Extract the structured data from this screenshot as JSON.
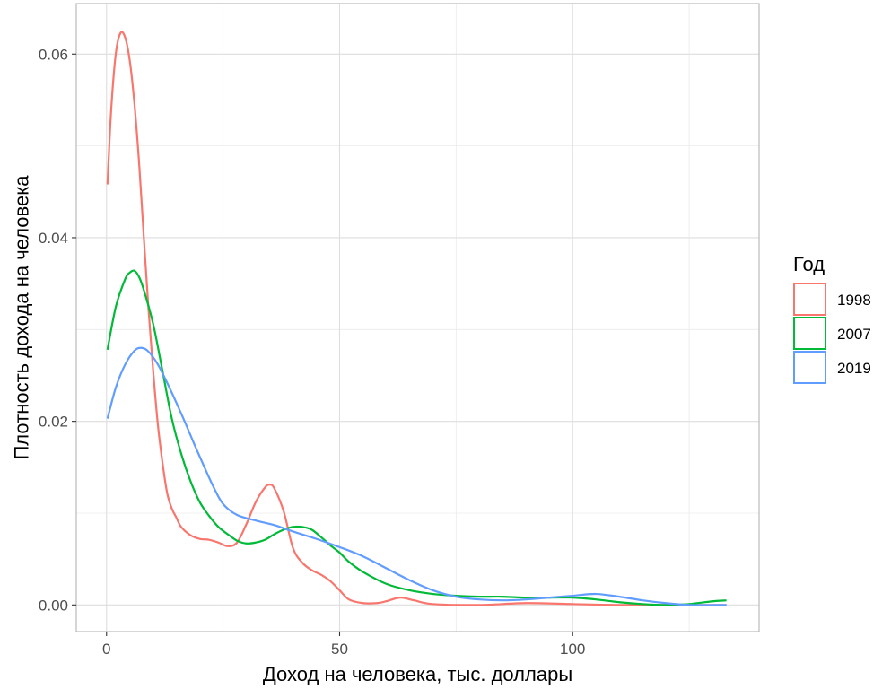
{
  "chart_data": {
    "type": "line",
    "title": "",
    "xlabel": "Доход на человека, тыс. доллары",
    "ylabel": "Плотность дохода на человека",
    "xlim": [
      -6.5,
      140
    ],
    "ylim": [
      -0.0029,
      0.0655
    ],
    "x_ticks": [
      0,
      50,
      100
    ],
    "x_tick_labels": [
      "0",
      "50",
      "100"
    ],
    "y_ticks": [
      0.0,
      0.02,
      0.04,
      0.06
    ],
    "y_tick_labels": [
      "0.00",
      "0.02",
      "0.04",
      "0.06"
    ],
    "x_minor": [
      25,
      75,
      125
    ],
    "y_minor": [
      0.01,
      0.03,
      0.05
    ],
    "grid": true,
    "legend": {
      "title": "Год",
      "position": "right"
    },
    "series": [
      {
        "name": "1998",
        "color": "#F8766D",
        "points": [
          [
            0.2,
            0.0458
          ],
          [
            1,
            0.054
          ],
          [
            2,
            0.0601
          ],
          [
            3,
            0.0623
          ],
          [
            4,
            0.0618
          ],
          [
            5,
            0.0592
          ],
          [
            6,
            0.0545
          ],
          [
            7,
            0.048
          ],
          [
            8,
            0.04
          ],
          [
            9,
            0.0322
          ],
          [
            10,
            0.0255
          ],
          [
            11,
            0.0197
          ],
          [
            12,
            0.0155
          ],
          [
            13,
            0.0122
          ],
          [
            14,
            0.0105
          ],
          [
            15,
            0.0095
          ],
          [
            16,
            0.0085
          ],
          [
            18,
            0.0076
          ],
          [
            20,
            0.0072
          ],
          [
            22,
            0.0071
          ],
          [
            24,
            0.0068
          ],
          [
            26,
            0.0064
          ],
          [
            28,
            0.0068
          ],
          [
            30,
            0.0088
          ],
          [
            32,
            0.0112
          ],
          [
            34,
            0.0128
          ],
          [
            35,
            0.0131
          ],
          [
            36,
            0.0127
          ],
          [
            38,
            0.0102
          ],
          [
            40,
            0.0062
          ],
          [
            42,
            0.0046
          ],
          [
            44,
            0.0038
          ],
          [
            46,
            0.0033
          ],
          [
            48,
            0.0026
          ],
          [
            50,
            0.0016
          ],
          [
            52,
            0.0006
          ],
          [
            55,
            0.0002
          ],
          [
            58,
            0.0002
          ],
          [
            60,
            0.0004
          ],
          [
            63,
            0.0008
          ],
          [
            66,
            0.0005
          ],
          [
            70,
            0.0001
          ],
          [
            80,
            0.0
          ],
          [
            90,
            0.0002
          ],
          [
            100,
            0.0001
          ],
          [
            110,
            0.0
          ],
          [
            133,
            0.0
          ]
        ]
      },
      {
        "name": "2007",
        "color": "#00BA38",
        "points": [
          [
            0.2,
            0.0278
          ],
          [
            2,
            0.0325
          ],
          [
            4,
            0.0355
          ],
          [
            5,
            0.0362
          ],
          [
            6,
            0.0364
          ],
          [
            7,
            0.0357
          ],
          [
            8,
            0.0343
          ],
          [
            10,
            0.0306
          ],
          [
            12,
            0.0255
          ],
          [
            14,
            0.0203
          ],
          [
            16,
            0.0165
          ],
          [
            18,
            0.0135
          ],
          [
            20,
            0.0112
          ],
          [
            22,
            0.0097
          ],
          [
            24,
            0.0085
          ],
          [
            26,
            0.0077
          ],
          [
            28,
            0.007
          ],
          [
            30,
            0.0067
          ],
          [
            32,
            0.0068
          ],
          [
            34,
            0.0071
          ],
          [
            36,
            0.0077
          ],
          [
            38,
            0.0082
          ],
          [
            40,
            0.0085
          ],
          [
            42,
            0.0085
          ],
          [
            44,
            0.0082
          ],
          [
            46,
            0.0074
          ],
          [
            48,
            0.0065
          ],
          [
            50,
            0.0057
          ],
          [
            52,
            0.0047
          ],
          [
            55,
            0.0036
          ],
          [
            60,
            0.0023
          ],
          [
            65,
            0.0016
          ],
          [
            70,
            0.0012
          ],
          [
            75,
            0.001
          ],
          [
            80,
            0.0009
          ],
          [
            85,
            0.0009
          ],
          [
            90,
            0.0008
          ],
          [
            95,
            0.0008
          ],
          [
            100,
            0.0008
          ],
          [
            105,
            0.0006
          ],
          [
            110,
            0.0003
          ],
          [
            115,
            0.0001
          ],
          [
            120,
            0.0
          ],
          [
            125,
            0.0001
          ],
          [
            130,
            0.0004
          ],
          [
            133,
            0.0005
          ]
        ]
      },
      {
        "name": "2019",
        "color": "#619CFF",
        "points": [
          [
            0.2,
            0.0203
          ],
          [
            2,
            0.0237
          ],
          [
            4,
            0.0262
          ],
          [
            6,
            0.0277
          ],
          [
            7.5,
            0.028
          ],
          [
            9,
            0.0276
          ],
          [
            11,
            0.0262
          ],
          [
            13,
            0.0242
          ],
          [
            15,
            0.022
          ],
          [
            17,
            0.0197
          ],
          [
            19,
            0.0173
          ],
          [
            21,
            0.015
          ],
          [
            23,
            0.0128
          ],
          [
            25,
            0.011
          ],
          [
            28,
            0.0098
          ],
          [
            32,
            0.0092
          ],
          [
            36,
            0.0087
          ],
          [
            40,
            0.008
          ],
          [
            45,
            0.0072
          ],
          [
            50,
            0.0063
          ],
          [
            55,
            0.0053
          ],
          [
            60,
            0.004
          ],
          [
            65,
            0.0027
          ],
          [
            70,
            0.0016
          ],
          [
            75,
            0.0009
          ],
          [
            80,
            0.0006
          ],
          [
            85,
            0.0005
          ],
          [
            90,
            0.0006
          ],
          [
            95,
            0.0008
          ],
          [
            100,
            0.001
          ],
          [
            105,
            0.0012
          ],
          [
            110,
            0.0009
          ],
          [
            115,
            0.0005
          ],
          [
            120,
            0.0002
          ],
          [
            125,
            0.0
          ],
          [
            133,
            0.0
          ]
        ]
      }
    ]
  }
}
